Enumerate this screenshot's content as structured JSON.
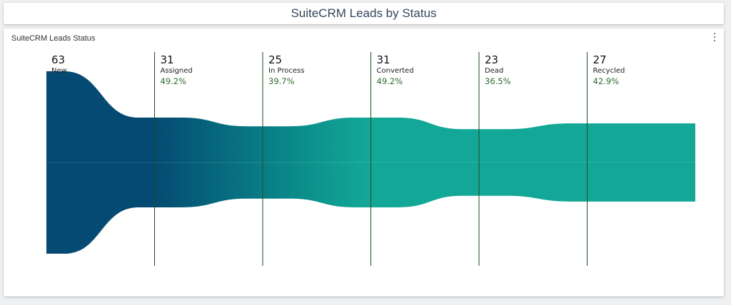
{
  "header": {
    "title": "SuiteCRM Leads by Status"
  },
  "panel": {
    "title": "SuiteCRM Leads Status",
    "menu_icon": "kebab-menu-icon"
  },
  "colors": {
    "dark": "#044a72",
    "teal": "#12a796",
    "divider": "#1f4d1f",
    "percent": "#2d6a2d"
  },
  "chart_data": {
    "type": "funnel",
    "title": "SuiteCRM Leads Status",
    "categories": [
      "New",
      "Assigned",
      "In Process",
      "Converted",
      "Dead",
      "Recycled"
    ],
    "values": [
      63,
      31,
      25,
      31,
      23,
      27
    ],
    "percent_labels": [
      "",
      "49.2%",
      "39.7%",
      "49.2%",
      "36.5%",
      "42.9%"
    ],
    "counts_display": [
      "63",
      "31",
      "25",
      "31",
      "23",
      "27"
    ]
  }
}
